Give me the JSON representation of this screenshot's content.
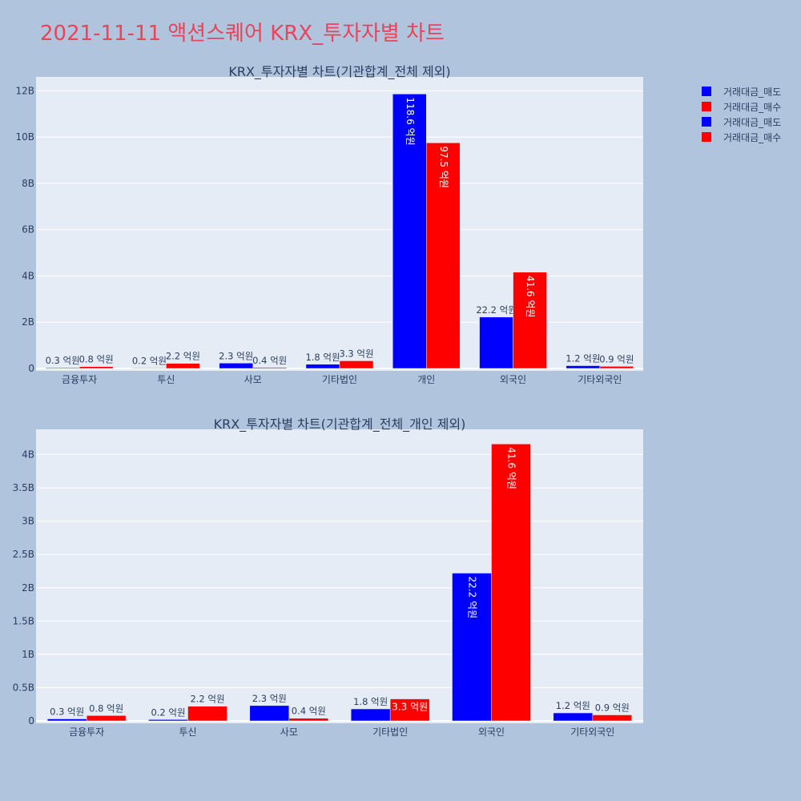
{
  "page_title": "2021-11-11 액션스퀘어 KRX_투자자별 차트",
  "colors": {
    "background": "#b0c4de",
    "plot_bg": "#e5ecf6",
    "title": "#e8445a",
    "sell": "#0000ff",
    "buy": "#ff0000",
    "text": "#2a3f5f"
  },
  "legend": {
    "position": "top-right",
    "items": [
      {
        "label": "거래대금_매도",
        "color": "#0000ff"
      },
      {
        "label": "거래대금_매수",
        "color": "#ff0000"
      },
      {
        "label": "거래대금_매도",
        "color": "#0000ff"
      },
      {
        "label": "거래대금_매수",
        "color": "#ff0000"
      }
    ]
  },
  "chart_data": [
    {
      "type": "bar",
      "title": "KRX_투자자별 차트(기관합계_전체 제외)",
      "categories": [
        "금융투자",
        "투신",
        "사모",
        "기타법인",
        "개인",
        "외국인",
        "기타외국인"
      ],
      "series": [
        {
          "name": "거래대금_매도",
          "color": "#0000ff",
          "values": [
            0.03,
            0.02,
            0.23,
            0.18,
            11.86,
            2.22,
            0.12
          ],
          "labels": [
            "0.3 억원",
            "0.2 억원",
            "2.3 억원",
            "1.8 억원",
            "118.6 억원",
            "22.2 억원",
            "1.2 억원"
          ]
        },
        {
          "name": "거래대금_매수",
          "color": "#ff0000",
          "values": [
            0.08,
            0.22,
            0.04,
            0.33,
            9.75,
            4.16,
            0.09
          ],
          "labels": [
            "0.8 억원",
            "2.2 억원",
            "0.4 억원",
            "3.3 억원",
            "97.5 억원",
            "41.6 억원",
            "0.9 억원"
          ]
        }
      ],
      "ylim": [
        0,
        12.6
      ],
      "y_unit": "B",
      "yticks": [
        0,
        2,
        4,
        6,
        8,
        10,
        12
      ],
      "ytick_labels": [
        "0",
        "2B",
        "4B",
        "6B",
        "8B",
        "10B",
        "12B"
      ],
      "grid": true
    },
    {
      "type": "bar",
      "title": "KRX_투자자별 차트(기관합계_전체_개인 제외)",
      "categories": [
        "금융투자",
        "투신",
        "사모",
        "기타법인",
        "외국인",
        "기타외국인"
      ],
      "series": [
        {
          "name": "거래대금_매도",
          "color": "#0000ff",
          "values": [
            0.03,
            0.02,
            0.23,
            0.18,
            2.22,
            0.12
          ],
          "labels": [
            "0.3 억원",
            "0.2 억원",
            "2.3 억원",
            "1.8 억원",
            "22.2 억원",
            "1.2 억원"
          ]
        },
        {
          "name": "거래대금_매수",
          "color": "#ff0000",
          "values": [
            0.08,
            0.22,
            0.04,
            0.33,
            4.16,
            0.09
          ],
          "labels": [
            "0.8 억원",
            "2.2 억원",
            "0.4 억원",
            "3.3 억원",
            "41.6 억원",
            "0.9 억원"
          ]
        }
      ],
      "ylim": [
        0,
        4.38
      ],
      "y_unit": "B",
      "yticks": [
        0,
        0.5,
        1,
        1.5,
        2,
        2.5,
        3,
        3.5,
        4
      ],
      "ytick_labels": [
        "0",
        "0.5B",
        "1B",
        "1.5B",
        "2B",
        "2.5B",
        "3B",
        "3.5B",
        "4B"
      ],
      "grid": true
    }
  ]
}
